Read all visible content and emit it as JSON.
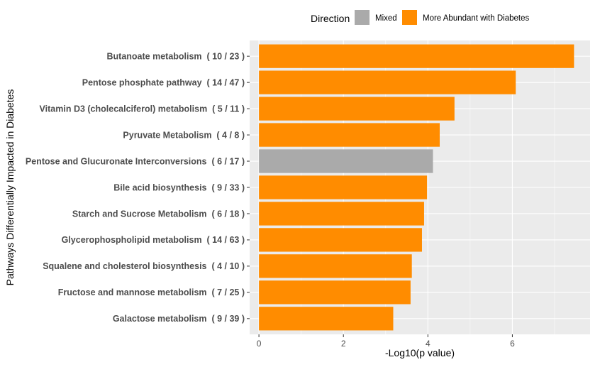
{
  "chart_data": {
    "type": "bar",
    "orientation": "horizontal",
    "title": "",
    "xlabel": "-Log10(p value)",
    "ylabel": "Pathways Differentially Impacted in Diabetes",
    "xlim": [
      -0.22,
      7.84
    ],
    "xticks": [
      0,
      2,
      4,
      6
    ],
    "xtick_labels": [
      "0",
      "2",
      "4",
      "6"
    ],
    "grid": true,
    "legend": {
      "title": "Direction",
      "position": "top",
      "entries": [
        {
          "label": "Mixed",
          "color": "#aaaaaa"
        },
        {
          "label": "More Abundant with Diabetes",
          "color": "#ff8c00"
        }
      ]
    },
    "categories": [
      "Butanoate metabolism  ( 10 / 23 )",
      "Pentose phosphate pathway  ( 14 / 47 )",
      "Vitamin D3 (cholecalciferol) metabolism  ( 5 / 11 )",
      "Pyruvate Metabolism  ( 4 / 8 )",
      "Pentose and Glucuronate Interconversions  ( 6 / 17 )",
      "Bile acid biosynthesis  ( 9 / 33 )",
      "Starch and Sucrose Metabolism  ( 6 / 18 )",
      "Glycerophospholipid metabolism  ( 14 / 63 )",
      "Squalene and cholesterol biosynthesis  ( 4 / 10 )",
      "Fructose and mannose metabolism  ( 7 / 25 )",
      "Galactose metabolism  ( 9 / 39 )"
    ],
    "values": [
      7.46,
      6.08,
      4.63,
      4.28,
      4.12,
      3.98,
      3.91,
      3.86,
      3.62,
      3.59,
      3.18
    ],
    "direction": [
      "More Abundant with Diabetes",
      "More Abundant with Diabetes",
      "More Abundant with Diabetes",
      "More Abundant with Diabetes",
      "Mixed",
      "More Abundant with Diabetes",
      "More Abundant with Diabetes",
      "More Abundant with Diabetes",
      "More Abundant with Diabetes",
      "More Abundant with Diabetes",
      "More Abundant with Diabetes"
    ]
  },
  "colors": {
    "panel_bg": "#ebebeb",
    "grid_major": "#ffffff",
    "mixed": "#aaaaaa",
    "more_abundant": "#ff8c00",
    "tick_mark": "#333333"
  }
}
